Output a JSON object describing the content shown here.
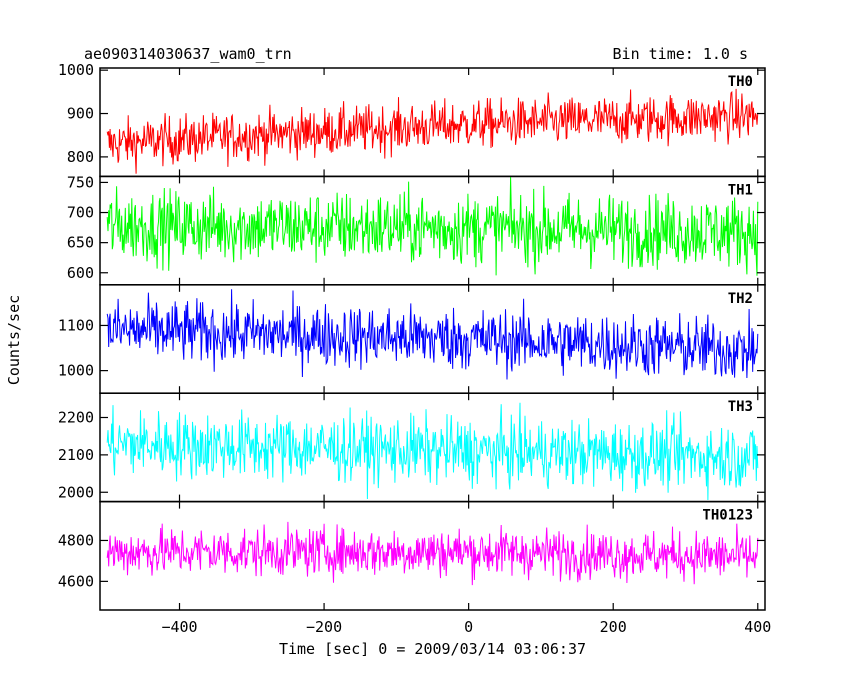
{
  "chart_data": {
    "type": "line",
    "title": "ae090314030637_wam0_trn",
    "bin_time_label": "Bin time: 1.0 s",
    "xlabel": "Time [sec] 0 = 2009/03/14 03:06:37",
    "ylabel": "Counts/sec",
    "xlim": [
      -510,
      410
    ],
    "xticks": [
      -400,
      -200,
      0,
      200,
      400
    ],
    "x_start": -500,
    "x_end": 400,
    "bin_time": 1.0,
    "series": [
      {
        "name": "TH0",
        "color": "#ff0000",
        "ylim": [
          755,
          1005
        ],
        "yticks": [
          800,
          900,
          1000
        ],
        "trend": [
          [
            -500,
            830
          ],
          [
            -300,
            850
          ],
          [
            0,
            875
          ],
          [
            400,
            895
          ]
        ],
        "noise": 28
      },
      {
        "name": "TH1",
        "color": "#00ff00",
        "ylim": [
          580,
          760
        ],
        "yticks": [
          600,
          650,
          700,
          750
        ],
        "trend": [
          [
            -500,
            678
          ],
          [
            0,
            674
          ],
          [
            400,
            668
          ]
        ],
        "noise": 30
      },
      {
        "name": "TH2",
        "color": "#0000ff",
        "ylim": [
          950,
          1190
        ],
        "yticks": [
          1000,
          1100
        ],
        "trend": [
          [
            -500,
            1090
          ],
          [
            0,
            1070
          ],
          [
            400,
            1045
          ]
        ],
        "noise": 35
      },
      {
        "name": "TH3",
        "color": "#00ffff",
        "ylim": [
          1975,
          2265
        ],
        "yticks": [
          2000,
          2100,
          2200
        ],
        "trend": [
          [
            -500,
            2130
          ],
          [
            0,
            2110
          ],
          [
            400,
            2095
          ]
        ],
        "noise": 45
      },
      {
        "name": "TH0123",
        "color": "#ff00ff",
        "ylim": [
          4460,
          4990
        ],
        "yticks": [
          4600,
          4800
        ],
        "trend": [
          [
            -500,
            4745
          ],
          [
            0,
            4745
          ],
          [
            400,
            4720
          ]
        ],
        "noise": 60
      }
    ]
  }
}
